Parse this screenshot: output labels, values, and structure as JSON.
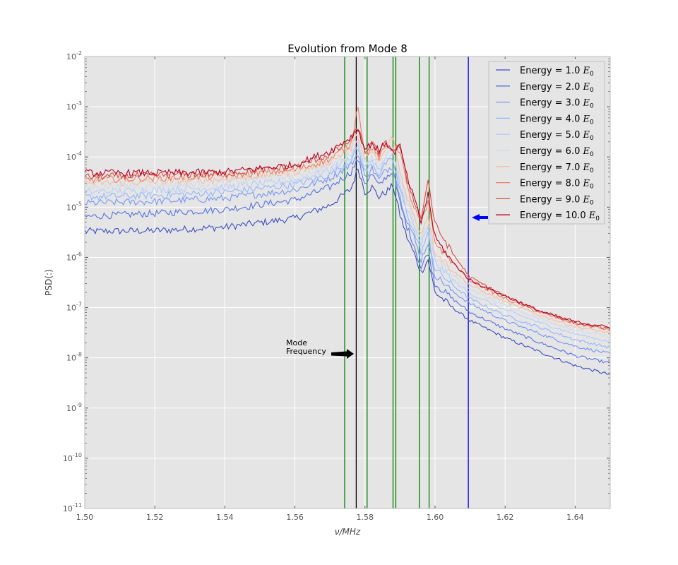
{
  "chart_data": {
    "type": "line",
    "title": "Evolution from Mode 8",
    "xlabel": "ν/MHz",
    "ylabel": "PSD(:)",
    "xlim": [
      1.5,
      1.65
    ],
    "ylim_log10": [
      -11,
      -2
    ],
    "y_scale": "log",
    "grid": true,
    "legend_position": "top-right",
    "x_ticks": [
      "1.50",
      "1.52",
      "1.54",
      "1.56",
      "1.58",
      "1.60",
      "1.62",
      "1.64"
    ],
    "y_tick_exponents": [
      "-11",
      "-10",
      "-9",
      "-8",
      "-7",
      "-6",
      "-5",
      "-4",
      "-3",
      "-2"
    ],
    "y_tick_base": "10",
    "energy_unit": "E",
    "energy_unit_subscript": "0",
    "series": [
      {
        "name": "Energy = 1.0",
        "color": "#3b4cc0",
        "points": [
          [
            1.5,
            3.3e-06
          ],
          [
            1.52,
            3.4e-06
          ],
          [
            1.54,
            4e-06
          ],
          [
            1.56,
            6e-06
          ],
          [
            1.57,
            1.1e-05
          ],
          [
            1.576,
            2.3e-05
          ],
          [
            1.578,
            6e-05
          ],
          [
            1.58,
            2e-05
          ],
          [
            1.582,
            2.5e-05
          ],
          [
            1.584,
            1.6e-05
          ],
          [
            1.586,
            2e-05
          ],
          [
            1.588,
            2.7e-05
          ],
          [
            1.59,
            7e-06
          ],
          [
            1.592,
            2.5e-06
          ],
          [
            1.594,
            1.2e-06
          ],
          [
            1.596,
            5e-07
          ],
          [
            1.598,
            9e-07
          ],
          [
            1.6,
            2e-07
          ],
          [
            1.605,
            1e-07
          ],
          [
            1.61,
            5.5e-08
          ],
          [
            1.62,
            2.5e-08
          ],
          [
            1.63,
            1.3e-08
          ],
          [
            1.64,
            7e-09
          ],
          [
            1.65,
            4.6e-09
          ]
        ]
      },
      {
        "name": "Energy = 2.0",
        "color": "#5673e0",
        "points": [
          [
            1.5,
            6.5e-06
          ],
          [
            1.52,
            7.5e-06
          ],
          [
            1.54,
            9e-06
          ],
          [
            1.56,
            1.4e-05
          ],
          [
            1.57,
            2.5e-05
          ],
          [
            1.576,
            5e-05
          ],
          [
            1.578,
            9e-05
          ],
          [
            1.58,
            3e-05
          ],
          [
            1.582,
            4.5e-05
          ],
          [
            1.584,
            2.6e-05
          ],
          [
            1.586,
            4e-05
          ],
          [
            1.588,
            5e-05
          ],
          [
            1.59,
            1.2e-05
          ],
          [
            1.592,
            4e-06
          ],
          [
            1.594,
            1.8e-06
          ],
          [
            1.596,
            6e-07
          ],
          [
            1.598,
            1.3e-06
          ],
          [
            1.6,
            3e-07
          ],
          [
            1.605,
            1.5e-07
          ],
          [
            1.61,
            8e-08
          ],
          [
            1.62,
            3.8e-08
          ],
          [
            1.63,
            2e-08
          ],
          [
            1.64,
            1.1e-08
          ],
          [
            1.65,
            7.8e-09
          ]
        ]
      },
      {
        "name": "Energy = 3.0",
        "color": "#7597f6",
        "points": [
          [
            1.5,
            1.2e-05
          ],
          [
            1.52,
            1.3e-05
          ],
          [
            1.54,
            1.5e-05
          ],
          [
            1.56,
            2.2e-05
          ],
          [
            1.57,
            3.8e-05
          ],
          [
            1.576,
            7e-05
          ],
          [
            1.578,
            0.00012
          ],
          [
            1.58,
            4e-05
          ],
          [
            1.582,
            6e-05
          ],
          [
            1.584,
            3.5e-05
          ],
          [
            1.586,
            5.5e-05
          ],
          [
            1.588,
            6.5e-05
          ],
          [
            1.59,
            1.6e-05
          ],
          [
            1.592,
            5.5e-06
          ],
          [
            1.594,
            2.5e-06
          ],
          [
            1.596,
            9e-07
          ],
          [
            1.598,
            2e-06
          ],
          [
            1.6,
            4.5e-07
          ],
          [
            1.605,
            2.1e-07
          ],
          [
            1.61,
            1.2e-07
          ],
          [
            1.62,
            5.5e-08
          ],
          [
            1.63,
            3e-08
          ],
          [
            1.64,
            1.7e-08
          ],
          [
            1.65,
            1.2e-08
          ]
        ]
      },
      {
        "name": "Energy = 4.0",
        "color": "#94b6ff",
        "points": [
          [
            1.5,
            1.6e-05
          ],
          [
            1.52,
            1.7e-05
          ],
          [
            1.54,
            2e-05
          ],
          [
            1.56,
            2.8e-05
          ],
          [
            1.57,
            4.5e-05
          ],
          [
            1.576,
            8.5e-05
          ],
          [
            1.578,
            0.00015
          ],
          [
            1.58,
            5e-05
          ],
          [
            1.582,
            7.5e-05
          ],
          [
            1.584,
            4.5e-05
          ],
          [
            1.586,
            7.5e-05
          ],
          [
            1.588,
            8.5e-05
          ],
          [
            1.59,
            2.2e-05
          ],
          [
            1.592,
            7.5e-06
          ],
          [
            1.594,
            3.2e-06
          ],
          [
            1.596,
            1.3e-06
          ],
          [
            1.598,
            2.8e-06
          ],
          [
            1.6,
            6e-07
          ],
          [
            1.605,
            2.8e-07
          ],
          [
            1.61,
            1.5e-07
          ],
          [
            1.62,
            7e-08
          ],
          [
            1.63,
            4e-08
          ],
          [
            1.64,
            2.3e-08
          ],
          [
            1.65,
            1.6e-08
          ]
        ]
      },
      {
        "name": "Energy = 5.0",
        "color": "#b5cdfa",
        "points": [
          [
            1.5,
            2e-05
          ],
          [
            1.52,
            2.2e-05
          ],
          [
            1.54,
            2.5e-05
          ],
          [
            1.56,
            3.4e-05
          ],
          [
            1.57,
            5.5e-05
          ],
          [
            1.576,
            0.0001
          ],
          [
            1.578,
            0.00018
          ],
          [
            1.58,
            6e-05
          ],
          [
            1.582,
            9e-05
          ],
          [
            1.584,
            5.5e-05
          ],
          [
            1.586,
            9e-05
          ],
          [
            1.588,
            0.00011
          ],
          [
            1.59,
            2.8e-05
          ],
          [
            1.592,
            9.5e-06
          ],
          [
            1.594,
            4e-06
          ],
          [
            1.596,
            1.8e-06
          ],
          [
            1.598,
            3.8e-06
          ],
          [
            1.6,
            8e-07
          ],
          [
            1.605,
            3.6e-07
          ],
          [
            1.61,
            1.9e-07
          ],
          [
            1.62,
            9e-08
          ],
          [
            1.63,
            5e-08
          ],
          [
            1.64,
            3e-08
          ],
          [
            1.65,
            2.1e-08
          ]
        ]
      },
      {
        "name": "Energy = 6.0",
        "color": "#d1dae9",
        "points": [
          [
            1.5,
            2.5e-05
          ],
          [
            1.52,
            2.7e-05
          ],
          [
            1.54,
            3.1e-05
          ],
          [
            1.56,
            4.2e-05
          ],
          [
            1.57,
            6.5e-05
          ],
          [
            1.576,
            0.00012
          ],
          [
            1.578,
            0.00022
          ],
          [
            1.58,
            7e-05
          ],
          [
            1.582,
            0.00011
          ],
          [
            1.584,
            6.5e-05
          ],
          [
            1.586,
            0.00011
          ],
          [
            1.588,
            0.00013
          ],
          [
            1.59,
            3.5e-05
          ],
          [
            1.592,
            1.2e-05
          ],
          [
            1.594,
            5e-06
          ],
          [
            1.596,
            2.3e-06
          ],
          [
            1.598,
            5e-06
          ],
          [
            1.6,
            1e-06
          ],
          [
            1.605,
            4.5e-07
          ],
          [
            1.61,
            2.3e-07
          ],
          [
            1.62,
            1.1e-07
          ],
          [
            1.63,
            6e-08
          ],
          [
            1.64,
            3.6e-08
          ],
          [
            1.65,
            2.6e-08
          ]
        ]
      },
      {
        "name": "Energy = 7.0",
        "color": "#f7bca1",
        "points": [
          [
            1.5,
            3e-05
          ],
          [
            1.52,
            3.2e-05
          ],
          [
            1.54,
            3.6e-05
          ],
          [
            1.56,
            5e-05
          ],
          [
            1.57,
            8e-05
          ],
          [
            1.576,
            0.00015
          ],
          [
            1.578,
            0.00028
          ],
          [
            1.58,
            8.5e-05
          ],
          [
            1.582,
            0.00013
          ],
          [
            1.584,
            8e-05
          ],
          [
            1.586,
            0.00014
          ],
          [
            1.588,
            0.00026
          ],
          [
            1.59,
            5e-05
          ],
          [
            1.592,
            1.6e-05
          ],
          [
            1.594,
            6.5e-06
          ],
          [
            1.596,
            3e-06
          ],
          [
            1.598,
            7e-06
          ],
          [
            1.6,
            1.3e-06
          ],
          [
            1.605,
            5.5e-07
          ],
          [
            1.61,
            2.8e-07
          ],
          [
            1.62,
            1.3e-07
          ],
          [
            1.63,
            7e-08
          ],
          [
            1.64,
            4.2e-08
          ],
          [
            1.65,
            3.1e-08
          ]
        ]
      },
      {
        "name": "Energy = 8.0",
        "color": "#ec7f63",
        "points": [
          [
            1.5,
            3.5e-05
          ],
          [
            1.52,
            3.8e-05
          ],
          [
            1.54,
            4.2e-05
          ],
          [
            1.56,
            5.5e-05
          ],
          [
            1.57,
            9e-05
          ],
          [
            1.576,
            0.00018
          ],
          [
            1.578,
            0.0011
          ],
          [
            1.58,
            0.00011
          ],
          [
            1.582,
            0.00015
          ],
          [
            1.584,
            9.5e-05
          ],
          [
            1.586,
            0.00016
          ],
          [
            1.588,
            0.00015
          ],
          [
            1.59,
            0.00014
          ],
          [
            1.592,
            2.5e-05
          ],
          [
            1.594,
            1e-05
          ],
          [
            1.596,
            4.5e-06
          ],
          [
            1.598,
            1.2e-05
          ],
          [
            1.6,
            2e-06
          ],
          [
            1.605,
            8e-07
          ],
          [
            1.61,
            3.5e-07
          ],
          [
            1.62,
            1.5e-07
          ],
          [
            1.63,
            8e-08
          ],
          [
            1.64,
            4.8e-08
          ],
          [
            1.65,
            3.6e-08
          ]
        ]
      },
      {
        "name": "Energy = 9.0",
        "color": "#d44e41",
        "points": [
          [
            1.5,
            4e-05
          ],
          [
            1.52,
            4.3e-05
          ],
          [
            1.54,
            4.6e-05
          ],
          [
            1.56,
            6.5e-05
          ],
          [
            1.57,
            0.00011
          ],
          [
            1.576,
            0.00022
          ],
          [
            1.578,
            0.00038
          ],
          [
            1.58,
            0.00013
          ],
          [
            1.582,
            0.00018
          ],
          [
            1.584,
            0.00012
          ],
          [
            1.586,
            0.00019
          ],
          [
            1.588,
            0.00014
          ],
          [
            1.59,
            0.00016
          ],
          [
            1.592,
            3.5e-05
          ],
          [
            1.594,
            1.4e-05
          ],
          [
            1.596,
            6e-06
          ],
          [
            1.598,
            3.5e-05
          ],
          [
            1.6,
            4.5e-06
          ],
          [
            1.605,
            1.2e-06
          ],
          [
            1.61,
            4e-07
          ],
          [
            1.62,
            1.7e-07
          ],
          [
            1.63,
            8.5e-08
          ],
          [
            1.64,
            5e-08
          ],
          [
            1.65,
            3.8e-08
          ]
        ]
      },
      {
        "name": "Energy = 10.0",
        "color": "#b40426",
        "points": [
          [
            1.5,
            4.8e-05
          ],
          [
            1.52,
            4.8e-05
          ],
          [
            1.54,
            5e-05
          ],
          [
            1.56,
            7e-05
          ],
          [
            1.57,
            0.00013
          ],
          [
            1.576,
            0.00025
          ],
          [
            1.578,
            0.00036
          ],
          [
            1.58,
            0.00014
          ],
          [
            1.582,
            0.00019
          ],
          [
            1.584,
            0.00013
          ],
          [
            1.586,
            0.0002
          ],
          [
            1.588,
            0.00012
          ],
          [
            1.59,
            0.00016
          ],
          [
            1.592,
            4e-05
          ],
          [
            1.594,
            1.5e-05
          ],
          [
            1.596,
            5e-06
          ],
          [
            1.598,
            1.8e-05
          ],
          [
            1.6,
            2.5e-06
          ],
          [
            1.605,
            8e-07
          ],
          [
            1.61,
            3.5e-07
          ],
          [
            1.62,
            1.7e-07
          ],
          [
            1.63,
            8.5e-08
          ],
          [
            1.64,
            5.2e-08
          ],
          [
            1.65,
            4e-08
          ]
        ]
      }
    ],
    "vertical_lines": [
      {
        "x": 1.5742,
        "color": "#008000"
      },
      {
        "x": 1.5775,
        "color": "#000000"
      },
      {
        "x": 1.5806,
        "color": "#008000"
      },
      {
        "x": 1.588,
        "color": "#008000"
      },
      {
        "x": 1.5888,
        "color": "#008000"
      },
      {
        "x": 1.5955,
        "color": "#008000"
      },
      {
        "x": 1.5983,
        "color": "#008000"
      },
      {
        "x": 1.6095,
        "color": "#0000ff"
      }
    ],
    "annotations": [
      {
        "text_lines": [
          "Mode",
          "Frequency"
        ],
        "arrow_color": "#000000"
      },
      {
        "arrow_color": "#0000ff"
      }
    ]
  }
}
